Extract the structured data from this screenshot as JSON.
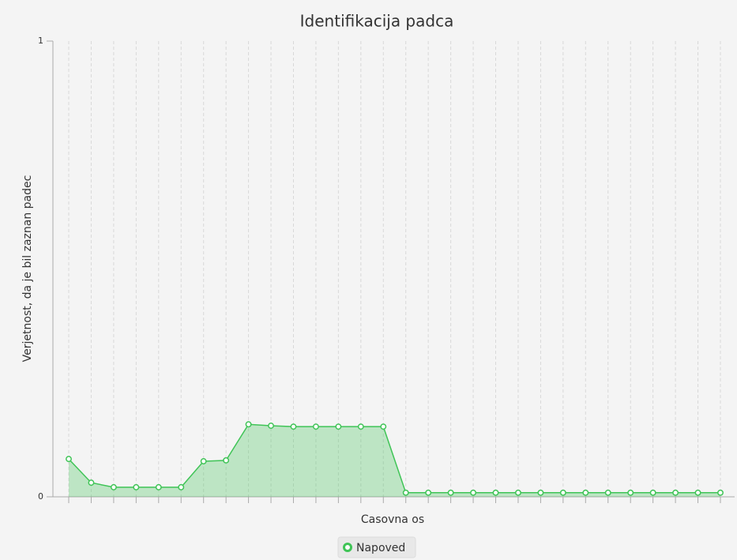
{
  "chart_data": {
    "type": "area",
    "title": "Identifikacija padca",
    "x_label": "Casovna os",
    "y_label": "Verjetnost, da je bil zaznan padec",
    "categories": [
      null,
      null,
      null,
      null,
      null,
      null,
      null,
      null,
      null,
      null,
      null,
      null,
      null,
      null,
      null,
      null,
      null,
      null,
      null,
      null,
      null,
      null,
      null,
      null,
      null,
      null,
      null,
      null,
      null,
      null
    ],
    "series": [
      {
        "name": "Napoved",
        "color": "#3fc456",
        "values": [
          0.083,
          0.031,
          0.021,
          0.021,
          0.021,
          0.021,
          0.078,
          0.08,
          0.159,
          0.156,
          0.154,
          0.154,
          0.154,
          0.154,
          0.154,
          0.009,
          0.009,
          0.009,
          0.009,
          0.009,
          0.009,
          0.009,
          0.009,
          0.009,
          0.009,
          0.009,
          0.009,
          0.009,
          0.009,
          0.009
        ]
      }
    ],
    "ylim": [
      0,
      1
    ],
    "yticks": [
      0,
      1
    ],
    "grid": true,
    "legend": "bottom"
  }
}
